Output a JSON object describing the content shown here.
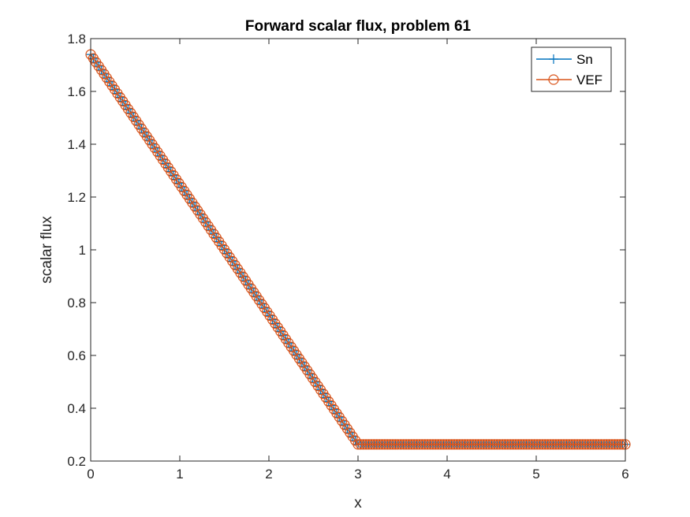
{
  "chart_data": {
    "type": "line",
    "title": "Forward scalar flux, problem 61",
    "xlabel": "x",
    "ylabel": "scalar flux",
    "xlim": [
      0,
      6
    ],
    "ylim": [
      0.2,
      1.8
    ],
    "xticks": [
      0,
      1,
      2,
      3,
      4,
      5,
      6
    ],
    "yticks": [
      0.2,
      0.4,
      0.6,
      0.8,
      1,
      1.2,
      1.4,
      1.6,
      1.8
    ],
    "xtick_labels": [
      "0",
      "1",
      "2",
      "3",
      "4",
      "5",
      "6"
    ],
    "ytick_labels": [
      "0.2",
      "0.4",
      "0.6",
      "0.8",
      "1",
      "1.2",
      "1.4",
      "1.6",
      "1.8"
    ],
    "grid": false,
    "legend_position": "top-right",
    "series": [
      {
        "name": "Sn",
        "color": "#0072BD",
        "marker": "plus",
        "x": [
          0,
          3,
          3.02,
          6
        ],
        "y": [
          1.74,
          0.263,
          0.263,
          0.263
        ]
      },
      {
        "name": "VEF",
        "color": "#D95319",
        "marker": "circle",
        "x": [
          0,
          3,
          3.02,
          6
        ],
        "y": [
          1.74,
          0.263,
          0.263,
          0.263
        ]
      }
    ],
    "sample_spacing": 0.03
  }
}
